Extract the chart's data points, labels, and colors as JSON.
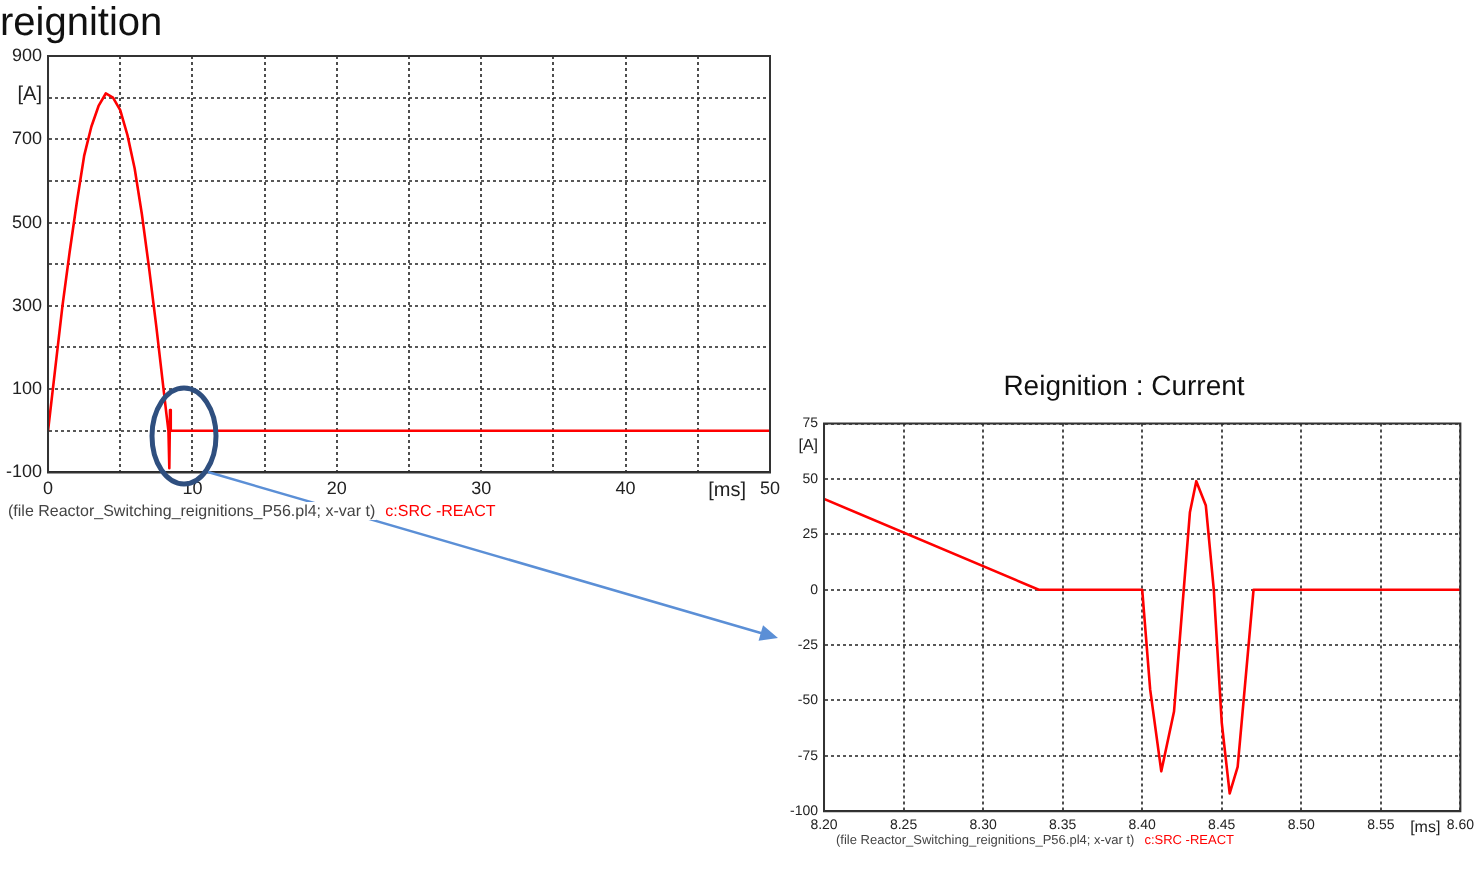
{
  "chart_data": [
    {
      "type": "line",
      "title": "reignition",
      "xlabel": "[ms]",
      "ylabel": "[A]",
      "xlim": [
        0,
        50
      ],
      "ylim": [
        -100,
        900
      ],
      "xticks": [
        0,
        {
          "value": 5,
          "label": null
        },
        10,
        {
          "value": 15,
          "label": null
        },
        20,
        {
          "value": 25,
          "label": null
        },
        30,
        {
          "value": 35,
          "label": null
        },
        40,
        {
          "value": 45,
          "label": null
        },
        50
      ],
      "yticks": [
        -100,
        {
          "value": 0,
          "label": null
        },
        100,
        {
          "value": 200,
          "label": null
        },
        300,
        {
          "value": 400,
          "label": null
        },
        500,
        {
          "value": 600,
          "label": null
        },
        700,
        {
          "value": 800,
          "label": null
        },
        900
      ],
      "grid": true,
      "annotations": [
        "(file Reactor_Switching_reignitions_P56.pl4; x-var t)"
      ],
      "series": [
        {
          "name": "c:SRC -REACT",
          "color": "#ff0000",
          "x": [
            0,
            0.5,
            1,
            1.5,
            2,
            2.5,
            3,
            3.5,
            4,
            4.5,
            5,
            5.5,
            6,
            6.5,
            7,
            7.5,
            8,
            8.2,
            8.34,
            8.4,
            8.45,
            8.5,
            10,
            50
          ],
          "values": [
            0,
            150,
            300,
            430,
            550,
            660,
            730,
            780,
            810,
            800,
            770,
            710,
            630,
            520,
            390,
            250,
            100,
            40,
            0,
            -90,
            50,
            0,
            0,
            0
          ]
        }
      ]
    },
    {
      "type": "line",
      "title": "Reignition : Current",
      "xlabel": "[ms]",
      "ylabel": "[A]",
      "xlim": [
        8.2,
        8.6
      ],
      "ylim": [
        -100,
        75
      ],
      "xticks": [
        {
          "value": 8.2,
          "label": "8.20"
        },
        8.25,
        {
          "value": 8.3,
          "label": "8.30"
        },
        8.35,
        {
          "value": 8.4,
          "label": "8.40"
        },
        8.45,
        {
          "value": 8.5,
          "label": "8.50"
        },
        8.55,
        {
          "value": 8.6,
          "label": "8.60"
        }
      ],
      "yticks": [
        -100,
        -75,
        -50,
        -25,
        0,
        25,
        50,
        75
      ],
      "grid": true,
      "annotations": [
        "(file Reactor_Switching_reignitions_P56.pl4; x-var t)"
      ],
      "series": [
        {
          "name": "c:SRC -REACT",
          "color": "#ff0000",
          "x": [
            8.2,
            8.335,
            8.4,
            8.405,
            8.412,
            8.42,
            8.425,
            8.43,
            8.434,
            8.44,
            8.445,
            8.45,
            8.455,
            8.46,
            8.465,
            8.47,
            8.6
          ],
          "values": [
            41,
            0,
            0,
            -45,
            -82,
            -55,
            -10,
            35,
            49,
            38,
            0,
            -60,
            -92,
            -80,
            -40,
            0,
            0
          ]
        }
      ]
    }
  ]
}
